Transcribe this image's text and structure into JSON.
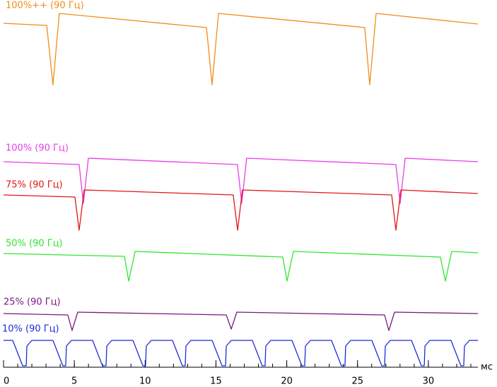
{
  "chart_data": {
    "type": "line",
    "xlabel": "мс",
    "xlim": [
      0,
      33.5
    ],
    "ylim": [
      0,
      104
    ],
    "xticks": [
      0,
      5,
      10,
      15,
      20,
      25,
      30
    ],
    "xminorticks": [
      0,
      1,
      2,
      3,
      4,
      5,
      6,
      7,
      8,
      9,
      10,
      11,
      12,
      13,
      14,
      15,
      16,
      17,
      18,
      19,
      20,
      21,
      22,
      23,
      24,
      25,
      26,
      27,
      28,
      29,
      30,
      31,
      32,
      33
    ],
    "series": [
      {
        "name": "100%++ (90 Гц)",
        "color": "#f28c1a",
        "x": [
          0,
          3.05,
          3.49,
          3.94,
          14.33,
          14.73,
          15.18,
          25.51,
          25.86,
          26.31,
          33.5
        ],
        "values": [
          97.4,
          96.8,
          80,
          100.2,
          96.2,
          80,
          100.2,
          96.2,
          80,
          100.2,
          97.2
        ]
      },
      {
        "name": "100% (90 Гц)",
        "color": "#e83ee8",
        "x": [
          0,
          5.34,
          5.64,
          5.99,
          16.52,
          16.82,
          17.17,
          27.71,
          28.01,
          28.36,
          33.5
        ],
        "values": [
          58.2,
          57.4,
          46.4,
          59.2,
          57.4,
          46.4,
          59.2,
          57.4,
          46.4,
          59.2,
          58.2
        ]
      },
      {
        "name": "75% (90 Гц)",
        "color": "#e01818",
        "x": [
          0,
          5.04,
          5.34,
          5.69,
          16.22,
          16.53,
          16.87,
          27.41,
          27.71,
          28.06,
          33.5
        ],
        "values": [
          48.8,
          48.2,
          38.8,
          50.2,
          48.8,
          38.8,
          50.2,
          48.8,
          38.8,
          50.2,
          49.2
        ]
      },
      {
        "name": "50% (90 Гц)",
        "color": "#2ee82e",
        "x": [
          0,
          8.54,
          8.84,
          9.29,
          19.72,
          20.02,
          20.47,
          30.85,
          31.2,
          31.65,
          33.5
        ],
        "values": [
          32.2,
          31.4,
          24.4,
          32.8,
          31.2,
          24.4,
          32.8,
          31.2,
          24.4,
          32.8,
          32.4
        ]
      },
      {
        "name": "25% (90 Гц)",
        "color": "#7a1a80",
        "x": [
          0,
          4.54,
          4.84,
          5.24,
          15.73,
          16.08,
          16.47,
          26.91,
          27.21,
          27.61,
          33.5
        ],
        "values": [
          15.2,
          14.8,
          10.4,
          15.6,
          14.8,
          10.8,
          15.6,
          14.8,
          10.4,
          15.6,
          15.2
        ]
      },
      {
        "name": "10% (90 Гц)",
        "color": "#1a2ed8",
        "x": [
          0,
          0.65,
          1.35,
          1.6,
          1.65,
          2.0,
          3.49,
          4.19,
          4.39,
          4.44,
          4.79,
          6.29,
          6.99,
          7.24,
          7.29,
          7.64,
          9.14,
          9.84,
          10.03,
          10.08,
          10.43,
          11.93,
          12.63,
          12.83,
          12.88,
          13.23,
          14.73,
          15.43,
          15.68,
          15.73,
          16.08,
          17.57,
          18.27,
          18.47,
          18.52,
          18.87,
          20.37,
          21.07,
          21.27,
          21.32,
          21.67,
          23.16,
          23.86,
          24.11,
          24.16,
          24.51,
          26.01,
          26.71,
          26.91,
          26.96,
          27.31,
          28.81,
          29.51,
          29.71,
          29.76,
          30.1,
          31.6,
          32.3,
          32.5,
          32.55,
          32.9,
          33.5
        ],
        "values": [
          7.6,
          7.6,
          0.4,
          0.4,
          6,
          7.6,
          7.6,
          0.4,
          0.4,
          6,
          7.6,
          7.6,
          0.4,
          0.4,
          6,
          7.6,
          7.6,
          0.4,
          0.4,
          6,
          7.6,
          7.6,
          0.4,
          0.4,
          6,
          7.6,
          7.6,
          0.4,
          0.4,
          6,
          7.6,
          7.6,
          0.4,
          0.4,
          6,
          7.6,
          7.6,
          0.4,
          0.4,
          6,
          7.6,
          7.6,
          0.4,
          0.4,
          6,
          7.6,
          7.6,
          0.4,
          0.4,
          6,
          7.6,
          7.6,
          0.4,
          0.4,
          6,
          7.6,
          7.6,
          0.4,
          0.4,
          6,
          7.6,
          7.6
        ]
      }
    ]
  }
}
